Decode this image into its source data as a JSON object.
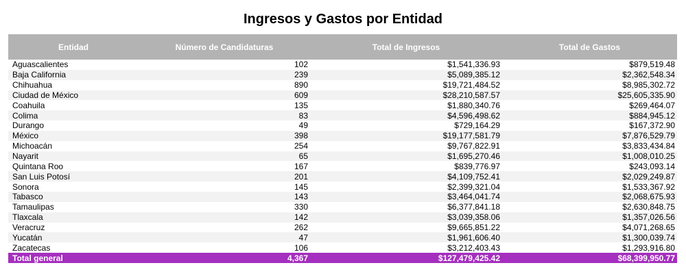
{
  "report": {
    "title": "Ingresos y Gastos por Entidad",
    "headers": {
      "entity": "Entidad",
      "candidacies": "Número de Candidaturas",
      "income": "Total de Ingresos",
      "expenses": "Total de Gastos"
    },
    "rows": [
      {
        "entity": "Aguascalientes",
        "candidacies": "102",
        "income": "$1,541,336.93",
        "expenses": "$879,519.48"
      },
      {
        "entity": "Baja California",
        "candidacies": "239",
        "income": "$5,089,385.12",
        "expenses": "$2,362,548.34"
      },
      {
        "entity": "Chihuahua",
        "candidacies": "890",
        "income": "$19,721,484.52",
        "expenses": "$8,985,302.72"
      },
      {
        "entity": "Ciudad de México",
        "candidacies": "609",
        "income": "$28,210,587.57",
        "expenses": "$25,605,335.90"
      },
      {
        "entity": "Coahuila",
        "candidacies": "135",
        "income": "$1,880,340.76",
        "expenses": "$269,464.07"
      },
      {
        "entity": "Colima",
        "candidacies": "83",
        "income": "$4,596,498.62",
        "expenses": "$884,945.12"
      },
      {
        "entity": "Durango",
        "candidacies": "49",
        "income": "$729,164.29",
        "expenses": "$167,372.90"
      },
      {
        "entity": "México",
        "candidacies": "398",
        "income": "$19,177,581.79",
        "expenses": "$7,876,529.79"
      },
      {
        "entity": "Michoacán",
        "candidacies": "254",
        "income": "$9,767,822.91",
        "expenses": "$3,833,434.84"
      },
      {
        "entity": "Nayarit",
        "candidacies": "65",
        "income": "$1,695,270.46",
        "expenses": "$1,008,010.25"
      },
      {
        "entity": "Quintana Roo",
        "candidacies": "167",
        "income": "$839,776.97",
        "expenses": "$243,093.14"
      },
      {
        "entity": "San Luis Potosí",
        "candidacies": "201",
        "income": "$4,109,752.41",
        "expenses": "$2,029,249.87"
      },
      {
        "entity": "Sonora",
        "candidacies": "145",
        "income": "$2,399,321.04",
        "expenses": "$1,533,367.92"
      },
      {
        "entity": "Tabasco",
        "candidacies": "143",
        "income": "$3,464,041.74",
        "expenses": "$2,068,675.93"
      },
      {
        "entity": "Tamaulipas",
        "candidacies": "330",
        "income": "$6,377,841.18",
        "expenses": "$2,630,848.75"
      },
      {
        "entity": "Tlaxcala",
        "candidacies": "142",
        "income": "$3,039,358.06",
        "expenses": "$1,357,026.56"
      },
      {
        "entity": "Veracruz",
        "candidacies": "262",
        "income": "$9,665,851.22",
        "expenses": "$4,071,268.65"
      },
      {
        "entity": "Yucatán",
        "candidacies": "47",
        "income": "$1,961,606.40",
        "expenses": "$1,300,039.74"
      },
      {
        "entity": "Zacatecas",
        "candidacies": "106",
        "income": "$3,212,403.43",
        "expenses": "$1,293,916.80"
      }
    ],
    "total": {
      "label": "Total general",
      "candidacies": "4,367",
      "income": "$127,479,425.42",
      "expenses": "$68,399,950.77"
    },
    "colors": {
      "header_bg": "#b3b3b3",
      "total_bg": "#a52fbf",
      "stripe_bg": "#f2f2f2"
    }
  }
}
